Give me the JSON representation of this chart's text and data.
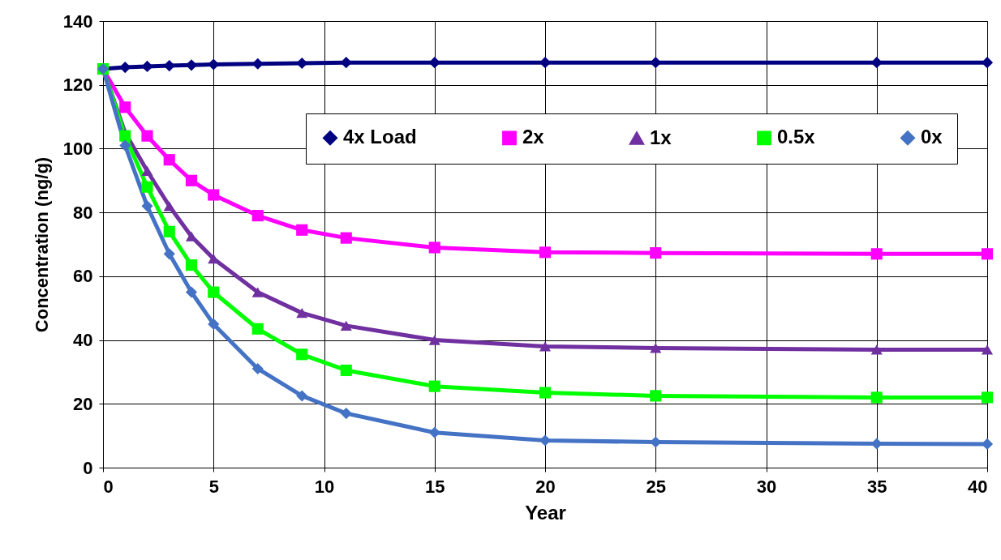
{
  "chart_data": {
    "type": "line",
    "xlabel": "Year",
    "ylabel": "Concentration (ng/g)",
    "xlim": [
      0,
      40
    ],
    "xticks": [
      0,
      5,
      10,
      15,
      20,
      25,
      30,
      35,
      40
    ],
    "ylim": [
      0,
      140
    ],
    "yticks": [
      0,
      20,
      40,
      60,
      80,
      100,
      120,
      140
    ],
    "grid": true,
    "legend": "top right",
    "line_style": "solid",
    "x": [
      0,
      1,
      2,
      3,
      4,
      5,
      7,
      9,
      11,
      15,
      20,
      25,
      35,
      40
    ],
    "series": [
      {
        "name": "4x Load",
        "color": "#000080",
        "marker": "diamond",
        "values": [
          125,
          125.5,
          125.8,
          126,
          126.2,
          126.4,
          126.6,
          126.8,
          127,
          127,
          127,
          127,
          127,
          127
        ]
      },
      {
        "name": "2x",
        "color": "#ff00ff",
        "marker": "square",
        "values": [
          125,
          113,
          104,
          96.5,
          90,
          85.5,
          79,
          74.5,
          72,
          69,
          67.5,
          67.3,
          67,
          67
        ]
      },
      {
        "name": "1x",
        "color": "#7030a0",
        "marker": "triangle",
        "values": [
          125,
          105,
          93,
          82,
          72.5,
          65.5,
          55,
          48.5,
          44.5,
          40,
          38,
          37.5,
          37,
          37
        ]
      },
      {
        "name": "0.5x",
        "color": "#00ff00",
        "marker": "square",
        "values": [
          125,
          104,
          88,
          74,
          63.5,
          55,
          43.5,
          35.5,
          30.5,
          25.5,
          23.5,
          22.5,
          22,
          22
        ]
      },
      {
        "name": "0x",
        "color": "#4472c4",
        "marker": "diamond",
        "values": [
          125,
          101,
          82,
          67,
          55,
          45,
          31,
          22.5,
          17,
          11,
          8.5,
          8,
          7.5,
          7.4
        ]
      }
    ]
  }
}
